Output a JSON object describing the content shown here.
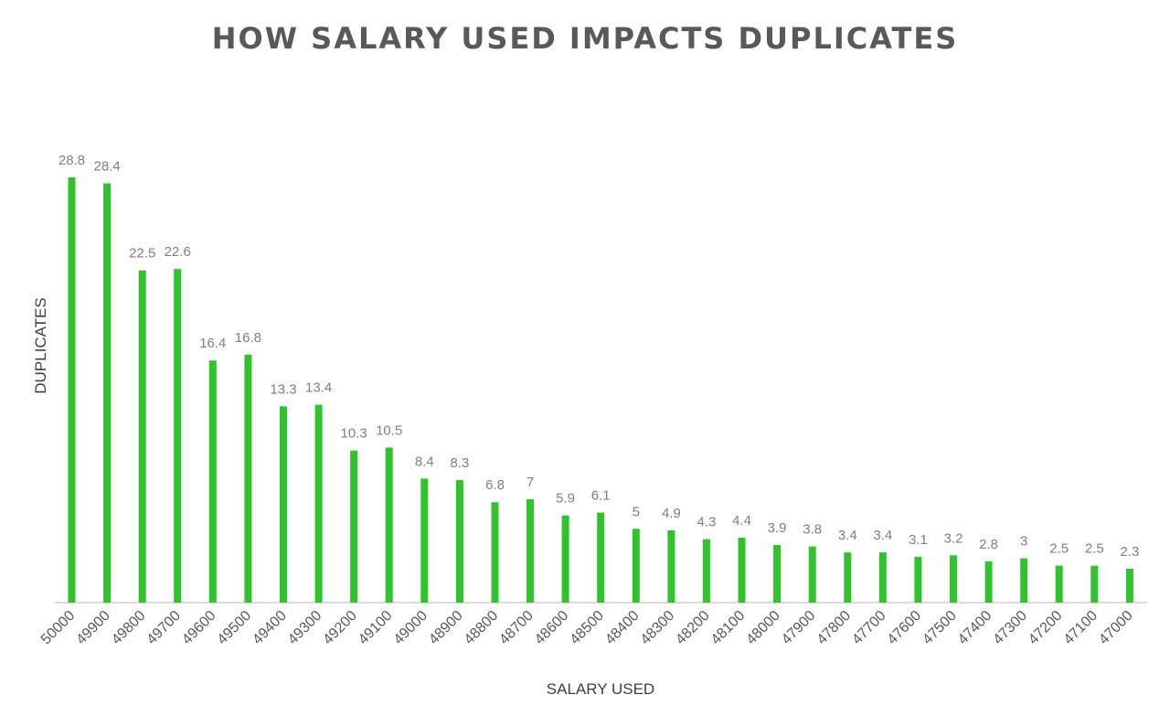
{
  "chart_data": {
    "type": "bar",
    "title": "HOW SALARY USED IMPACTS DUPLICATES",
    "xlabel": "SALARY USED",
    "ylabel": "DUPLICATES",
    "categories": [
      "50000",
      "49900",
      "49800",
      "49700",
      "49600",
      "49500",
      "49400",
      "49300",
      "49200",
      "49100",
      "49000",
      "48900",
      "48800",
      "48700",
      "48600",
      "48500",
      "48400",
      "48300",
      "48200",
      "48100",
      "48000",
      "47900",
      "47800",
      "47700",
      "47600",
      "47500",
      "47400",
      "47300",
      "47200",
      "47100",
      "47000"
    ],
    "values": [
      28.8,
      28.4,
      22.5,
      22.6,
      16.4,
      16.8,
      13.3,
      13.4,
      10.3,
      10.5,
      8.4,
      8.3,
      6.8,
      7,
      5.9,
      6.1,
      5,
      4.9,
      4.3,
      4.4,
      3.9,
      3.8,
      3.4,
      3.4,
      3.1,
      3.2,
      2.8,
      3,
      2.5,
      2.5,
      2.3
    ],
    "ylim": [
      0,
      30
    ],
    "grid": false,
    "bar_color": "#2fc42c",
    "data_labels": true
  }
}
